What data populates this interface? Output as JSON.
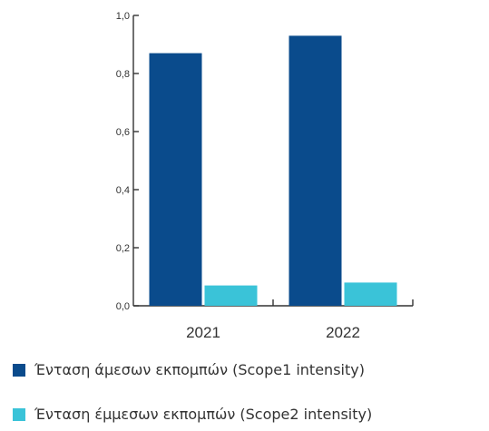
{
  "chart_data": {
    "type": "bar",
    "categories": [
      "2021",
      "2022"
    ],
    "series": [
      {
        "name": "Ένταση άμεσων εκπομπών (Scope1 intensity)",
        "values": [
          0.87,
          0.93
        ],
        "color": "#0a4b8c"
      },
      {
        "name": "Ένταση έμμεσων εκπομπών (Scope2 intensity)",
        "values": [
          0.07,
          0.08
        ],
        "color": "#3ac3d8"
      }
    ],
    "yticks": [
      "0,0",
      "0,2",
      "0,4",
      "0,6",
      "0,8",
      "1,0"
    ],
    "ylim": [
      0,
      1.0
    ],
    "grid": false,
    "legend_position": "bottom",
    "title": "",
    "xlabel": "",
    "ylabel": ""
  }
}
